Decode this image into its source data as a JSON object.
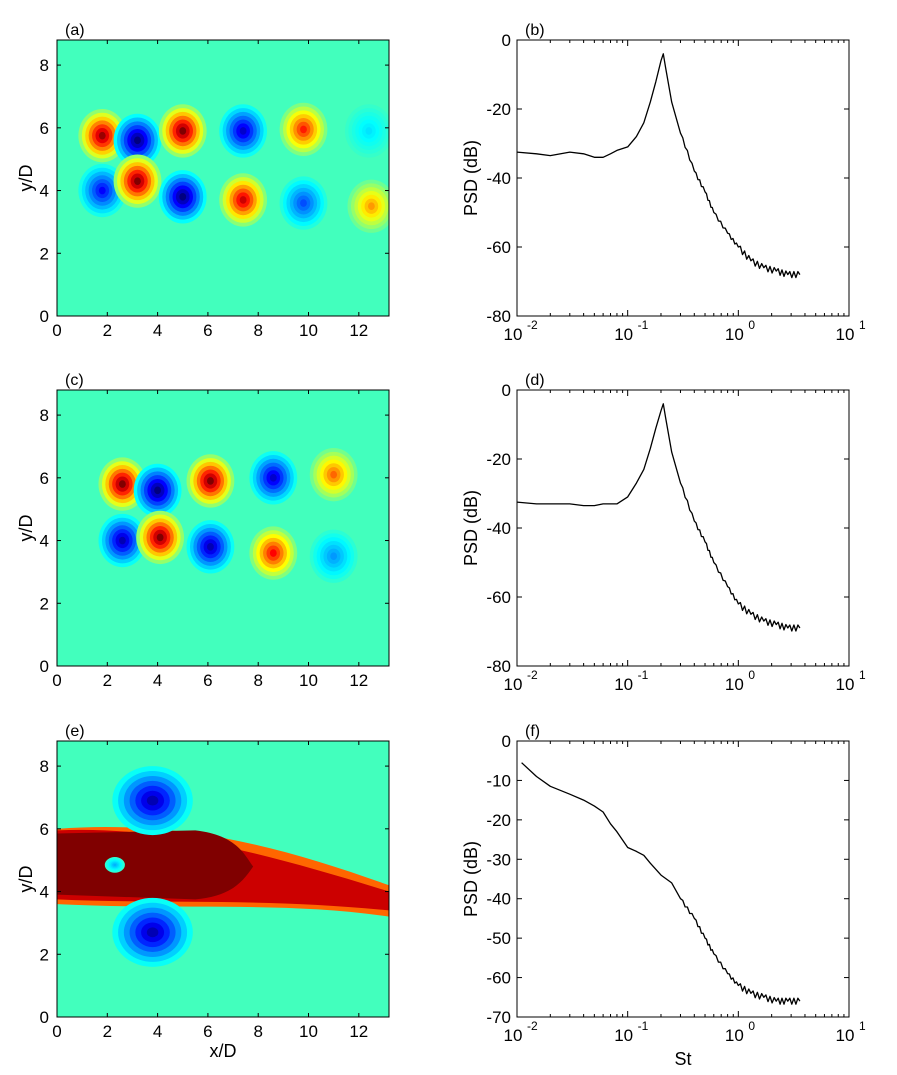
{
  "chart_data": [
    {
      "panel": "(a)",
      "type": "heatmap",
      "x_ticks": [
        "0",
        "2",
        "4",
        "6",
        "8",
        "10",
        "12"
      ],
      "y_ticks": [
        "0",
        "2",
        "4",
        "6",
        "8"
      ],
      "xlim": [
        0,
        13.2
      ],
      "ylim": [
        0,
        8.8
      ],
      "ylabel": "y/D",
      "xlabel": "",
      "colormap": "jet",
      "blobs": [
        {
          "x": 1.8,
          "y": 5.75,
          "v": 0.95
        },
        {
          "x": 3.2,
          "y": 5.6,
          "v": -1.0
        },
        {
          "x": 5.0,
          "y": 5.9,
          "v": 1.0
        },
        {
          "x": 7.4,
          "y": 5.9,
          "v": -0.85
        },
        {
          "x": 9.8,
          "y": 5.95,
          "v": 0.7
        },
        {
          "x": 12.4,
          "y": 5.9,
          "v": -0.3
        },
        {
          "x": 1.8,
          "y": 4.0,
          "v": -0.75
        },
        {
          "x": 3.2,
          "y": 4.3,
          "v": 1.0
        },
        {
          "x": 5.0,
          "y": 3.8,
          "v": -1.0
        },
        {
          "x": 7.4,
          "y": 3.7,
          "v": 0.85
        },
        {
          "x": 9.8,
          "y": 3.6,
          "v": -0.6
        },
        {
          "x": 12.5,
          "y": 3.5,
          "v": 0.45
        }
      ]
    },
    {
      "panel": "(b)",
      "type": "line",
      "ylabel": "PSD (dB)",
      "xlabel": "",
      "xscale": "log",
      "xlim": [
        0.01,
        10
      ],
      "ylim": [
        -80,
        0
      ],
      "x_ticks": [
        "-2",
        "-1",
        "0",
        "1"
      ],
      "y_ticks": [
        "0",
        "-20",
        "-40",
        "-60",
        "-80"
      ],
      "series": [
        {
          "x": [
            0.01,
            0.015,
            0.02,
            0.03,
            0.04,
            0.05,
            0.06,
            0.07,
            0.08,
            0.1,
            0.12,
            0.14,
            0.16,
            0.18,
            0.2,
            0.21,
            0.22,
            0.25,
            0.3,
            0.4,
            0.5,
            0.6,
            0.8,
            1.0,
            1.3,
            1.7,
            2.2,
            2.8,
            3.6
          ],
          "y": [
            -32.5,
            -33,
            -33.5,
            -32.5,
            -33,
            -34,
            -34,
            -33,
            -32,
            -31,
            -28,
            -24,
            -18,
            -12,
            -6,
            -4,
            -8,
            -18,
            -27,
            -38,
            -44,
            -50,
            -56,
            -60,
            -64,
            -66,
            -67,
            -68,
            -68
          ]
        }
      ]
    },
    {
      "panel": "(c)",
      "type": "heatmap",
      "x_ticks": [
        "0",
        "2",
        "4",
        "6",
        "8",
        "10",
        "12"
      ],
      "y_ticks": [
        "0",
        "2",
        "4",
        "6",
        "8"
      ],
      "xlim": [
        0,
        13.2
      ],
      "ylim": [
        0,
        8.8
      ],
      "ylabel": "y/D",
      "xlabel": "",
      "colormap": "jet",
      "blobs": [
        {
          "x": 2.6,
          "y": 5.8,
          "v": 1.0
        },
        {
          "x": 4.0,
          "y": 5.6,
          "v": -1.0
        },
        {
          "x": 6.1,
          "y": 5.9,
          "v": 1.0
        },
        {
          "x": 8.6,
          "y": 6.0,
          "v": -0.85
        },
        {
          "x": 11.0,
          "y": 6.1,
          "v": 0.55
        },
        {
          "x": 2.6,
          "y": 4.0,
          "v": -0.9
        },
        {
          "x": 4.1,
          "y": 4.1,
          "v": 1.0
        },
        {
          "x": 6.1,
          "y": 3.8,
          "v": -0.9
        },
        {
          "x": 8.6,
          "y": 3.6,
          "v": 0.75
        },
        {
          "x": 11.0,
          "y": 3.5,
          "v": -0.45
        }
      ]
    },
    {
      "panel": "(d)",
      "type": "line",
      "ylabel": "PSD (dB)",
      "xlabel": "",
      "xscale": "log",
      "xlim": [
        0.01,
        10
      ],
      "ylim": [
        -80,
        0
      ],
      "x_ticks": [
        "-2",
        "-1",
        "0",
        "1"
      ],
      "y_ticks": [
        "0",
        "-20",
        "-40",
        "-60",
        "-80"
      ],
      "series": [
        {
          "x": [
            0.01,
            0.015,
            0.02,
            0.03,
            0.04,
            0.05,
            0.06,
            0.07,
            0.08,
            0.1,
            0.12,
            0.14,
            0.16,
            0.18,
            0.2,
            0.21,
            0.22,
            0.25,
            0.3,
            0.4,
            0.5,
            0.6,
            0.8,
            1.0,
            1.3,
            1.7,
            2.2,
            2.8,
            3.6
          ],
          "y": [
            -32.5,
            -33,
            -33,
            -33,
            -33.5,
            -33.5,
            -33,
            -33,
            -33,
            -31,
            -27,
            -23,
            -17,
            -11,
            -6,
            -4,
            -8,
            -18,
            -27,
            -38,
            -44,
            -50,
            -57,
            -62,
            -65,
            -67,
            -68,
            -69,
            -69
          ]
        }
      ]
    },
    {
      "panel": "(e)",
      "type": "heatmap",
      "x_ticks": [
        "0",
        "2",
        "4",
        "6",
        "8",
        "10",
        "12"
      ],
      "y_ticks": [
        "0",
        "2",
        "4",
        "6",
        "8"
      ],
      "xlim": [
        0,
        13.2
      ],
      "ylim": [
        0,
        8.8
      ],
      "ylabel": "y/D",
      "xlabel": "x/D",
      "colormap": "jet",
      "blobs": [
        {
          "x": 3.8,
          "y": 6.9,
          "v": -0.9
        },
        {
          "x": 3.8,
          "y": 2.7,
          "v": -0.9
        },
        {
          "x": 2.3,
          "y": 4.85,
          "v": -0.4
        }
      ]
    },
    {
      "panel": "(f)",
      "type": "line",
      "ylabel": "PSD (dB)",
      "xlabel": "St",
      "xscale": "log",
      "xlim": [
        0.01,
        10
      ],
      "ylim": [
        -70,
        0
      ],
      "x_ticks": [
        "-2",
        "-1",
        "0",
        "1"
      ],
      "y_ticks": [
        "0",
        "-10",
        "-20",
        "-30",
        "-40",
        "-50",
        "-60",
        "-70"
      ],
      "series": [
        {
          "x": [
            0.011,
            0.015,
            0.02,
            0.03,
            0.04,
            0.05,
            0.06,
            0.07,
            0.08,
            0.1,
            0.12,
            0.14,
            0.16,
            0.2,
            0.25,
            0.3,
            0.4,
            0.5,
            0.6,
            0.8,
            1.0,
            1.3,
            1.7,
            2.2,
            2.8,
            3.6
          ],
          "y": [
            -5.5,
            -9,
            -11.5,
            -13.5,
            -15,
            -16.5,
            -18,
            -21,
            -23,
            -27,
            -28,
            -29,
            -31,
            -34,
            -36,
            -40,
            -45,
            -50,
            -54,
            -59,
            -62,
            -64,
            -65,
            -66,
            -66,
            -66
          ]
        }
      ]
    }
  ]
}
